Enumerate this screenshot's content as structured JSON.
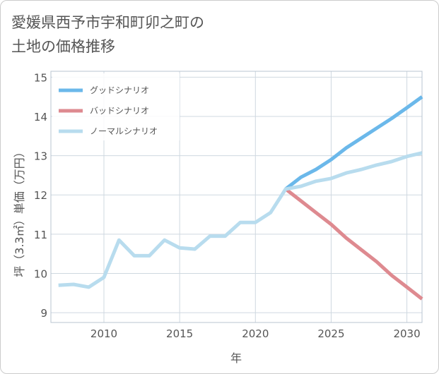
{
  "chart_data": {
    "type": "line",
    "title_line1": "愛媛県西予市宇和町卯之町の",
    "title_line2": "土地の価格推移",
    "xlabel": "年",
    "ylabel": "坪（3.3㎡）単価（万円）",
    "xlim": [
      2006.5,
      2031
    ],
    "ylim": [
      8.75,
      15.15
    ],
    "x_ticks": [
      2010,
      2015,
      2020,
      2025,
      2030
    ],
    "y_ticks": [
      9,
      10,
      11,
      12,
      13,
      14,
      15
    ],
    "grid": true,
    "legend_position": "top-left",
    "series": [
      {
        "name": "グッドシナリオ",
        "color": "#6bb8ea",
        "x": [
          2022,
          2023,
          2024,
          2025,
          2026,
          2027,
          2028,
          2029,
          2030,
          2031
        ],
        "values": [
          12.15,
          12.45,
          12.65,
          12.9,
          13.2,
          13.45,
          13.7,
          13.95,
          14.22,
          14.5
        ]
      },
      {
        "name": "バッドシナリオ",
        "color": "#de8a90",
        "x": [
          2022,
          2023,
          2024,
          2025,
          2026,
          2027,
          2028,
          2029,
          2030,
          2031
        ],
        "values": [
          12.15,
          11.85,
          11.55,
          11.25,
          10.9,
          10.6,
          10.3,
          9.95,
          9.65,
          9.35
        ]
      },
      {
        "name": "ノーマルシナリオ",
        "color": "#b8dcee",
        "x": [
          2007,
          2008,
          2009,
          2010,
          2011,
          2012,
          2013,
          2014,
          2015,
          2016,
          2017,
          2018,
          2019,
          2020,
          2021,
          2022,
          2023,
          2024,
          2025,
          2026,
          2027,
          2028,
          2029,
          2030,
          2031
        ],
        "values": [
          9.7,
          9.72,
          9.65,
          9.9,
          10.85,
          10.45,
          10.45,
          10.85,
          10.65,
          10.62,
          10.95,
          10.95,
          11.3,
          11.3,
          11.55,
          12.15,
          12.22,
          12.35,
          12.42,
          12.56,
          12.65,
          12.76,
          12.85,
          12.98,
          13.07
        ]
      }
    ]
  }
}
